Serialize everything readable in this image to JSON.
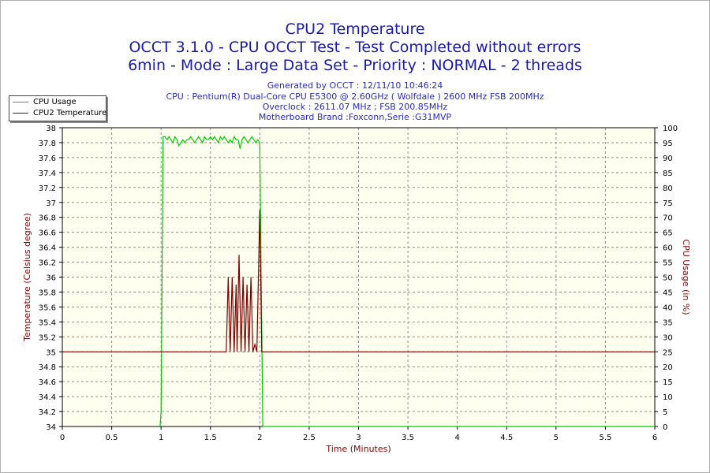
{
  "titles": {
    "line1": "CPU2 Temperature",
    "line2": "OCCT 3.1.0 - CPU OCCT Test - Test Completed without errors",
    "line3": "6min - Mode : Large Data Set - Priority : NORMAL - 2 threads"
  },
  "info": {
    "generated": "Generated by OCCT : 12/11/10 10:46:24",
    "cpu": "CPU : Pentium(R) Dual-Core CPU E5300 @ 2.60GHz ( Wolfdale ) 2600 MHz FSB 200MHz",
    "overclock": "Overclock : 2611.07 MHz ; FSB 200.85MHz",
    "motherboard": "Motherboard Brand :Foxconn,Serie :G31MVP"
  },
  "legend": {
    "items": [
      {
        "label": "CPU Usage",
        "color": "#00cc00"
      },
      {
        "label": "CPU2 Temperature",
        "color": "#800000"
      }
    ]
  },
  "colors": {
    "plot_bg": "#fffff0",
    "grid": "#909090",
    "axis_left_label": "#8b0000",
    "axis_right_label": "#8b0000"
  },
  "chart_data": {
    "type": "line",
    "xlabel": "Time (Minutes)",
    "ylabel_left": "Temperature (Celsius degree)",
    "ylabel_right": "CPU Usage (in %)",
    "xlim": [
      0,
      6
    ],
    "ylim_left": [
      34,
      38
    ],
    "ylim_right": [
      0,
      100
    ],
    "x_ticks": [
      "0",
      "0.5",
      "1",
      "1.5",
      "2",
      "2.5",
      "3",
      "3.5",
      "4",
      "4.5",
      "5",
      "5.5",
      "6"
    ],
    "y_left_ticks": [
      "34",
      "34.2",
      "34.4",
      "34.6",
      "34.8",
      "35",
      "35.2",
      "35.4",
      "35.6",
      "35.8",
      "36",
      "36.2",
      "36.4",
      "36.6",
      "36.8",
      "37",
      "37.2",
      "37.4",
      "37.6",
      "37.8",
      "38"
    ],
    "y_right_ticks": [
      "0",
      "5",
      "10",
      "15",
      "20",
      "25",
      "30",
      "35",
      "40",
      "45",
      "50",
      "55",
      "60",
      "65",
      "70",
      "75",
      "80",
      "85",
      "90",
      "95",
      "100"
    ],
    "grid": true,
    "legend_position": "top-left",
    "series": [
      {
        "name": "CPU Usage",
        "axis": "right",
        "color": "#00cc00",
        "x": [
          0.99,
          1.0,
          1.02,
          1.04,
          1.06,
          1.08,
          1.1,
          1.12,
          1.14,
          1.16,
          1.18,
          1.2,
          1.22,
          1.24,
          1.26,
          1.28,
          1.3,
          1.32,
          1.34,
          1.36,
          1.38,
          1.4,
          1.42,
          1.44,
          1.46,
          1.48,
          1.5,
          1.52,
          1.54,
          1.56,
          1.58,
          1.6,
          1.62,
          1.64,
          1.66,
          1.68,
          1.7,
          1.72,
          1.74,
          1.76,
          1.78,
          1.8,
          1.82,
          1.84,
          1.86,
          1.88,
          1.9,
          1.92,
          1.94,
          1.96,
          1.98,
          2.0,
          2.03,
          6.0
        ],
        "y": [
          0,
          5,
          97,
          97,
          96,
          97,
          96,
          95,
          97,
          96,
          94,
          95,
          96,
          95,
          96,
          96,
          97,
          96,
          95,
          96,
          97,
          96,
          95,
          97,
          96,
          96,
          97,
          96,
          97,
          96,
          95,
          97,
          96,
          97,
          96,
          95,
          96,
          95,
          97,
          96,
          96,
          93,
          96,
          97,
          96,
          95,
          96,
          97,
          96,
          95,
          96,
          95,
          0,
          0
        ]
      },
      {
        "name": "CPU2 Temperature",
        "axis": "left",
        "color": "#800000",
        "x": [
          0,
          1.66,
          1.68,
          1.7,
          1.72,
          1.74,
          1.76,
          1.77,
          1.79,
          1.81,
          1.83,
          1.85,
          1.87,
          1.89,
          1.91,
          1.93,
          1.95,
          1.97,
          2.0,
          2.02,
          2.04,
          6.0
        ],
        "y": [
          35,
          35,
          36,
          35,
          36,
          35,
          35.9,
          35,
          36.3,
          35,
          36,
          35,
          35.9,
          35,
          36.0,
          35,
          35.1,
          35,
          36.9,
          35,
          35,
          35
        ]
      }
    ]
  }
}
